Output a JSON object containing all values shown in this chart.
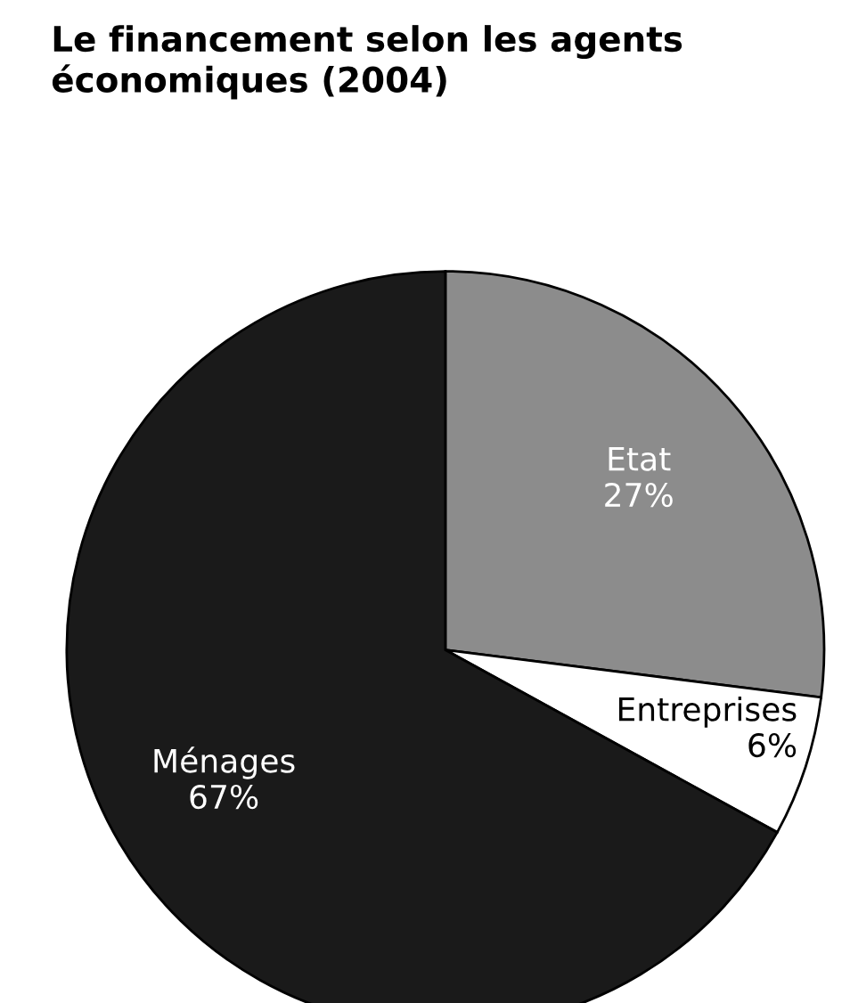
{
  "chart_data": {
    "type": "pie",
    "title": "Le financement selon les agents\néconomiques (2004)",
    "categories": [
      "Etat",
      "Entreprises",
      "Ménages"
    ],
    "values": [
      27,
      6,
      67
    ],
    "colors": [
      "#8c8c8c",
      "#ffffff",
      "#1a1a1a"
    ],
    "value_labels": [
      "27%",
      "6%",
      "67%"
    ]
  }
}
